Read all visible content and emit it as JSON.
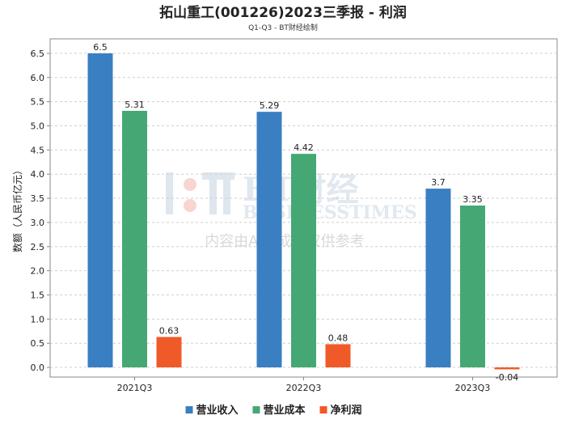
{
  "chart_data": {
    "type": "bar",
    "title": "拓山重工(001226)2023三季报 - 利润",
    "subtitle": "Q1-Q3 - BT财经绘制",
    "ylabel": "数额（人民币亿元）",
    "xlabel": "",
    "categories": [
      "2021Q3",
      "2022Q3",
      "2023Q3"
    ],
    "ylim": [
      -0.2,
      6.8
    ],
    "yticks": [
      0.0,
      0.5,
      1.0,
      1.5,
      2.0,
      2.5,
      3.0,
      3.5,
      4.0,
      4.5,
      5.0,
      5.5,
      6.0,
      6.5
    ],
    "grid": true,
    "legend_position": "bottom",
    "series": [
      {
        "name": "营业收入",
        "color": "#3a7fc1",
        "values": [
          6.5,
          5.29,
          3.7
        ],
        "labels": [
          "6.5",
          "5.29",
          "3.7"
        ]
      },
      {
        "name": "营业成本",
        "color": "#45a874",
        "values": [
          5.31,
          4.42,
          3.35
        ],
        "labels": [
          "5.31",
          "4.42",
          "3.35"
        ]
      },
      {
        "name": "净利润",
        "color": "#f05a28",
        "values": [
          0.63,
          0.48,
          -0.04
        ],
        "labels": [
          "0.63",
          "0.48",
          "-0.04"
        ]
      }
    ]
  },
  "watermark": {
    "brand": "BT财经",
    "brand_en": "BUSINESSTIMES",
    "note": "内容由AI生成，仅供参考"
  }
}
